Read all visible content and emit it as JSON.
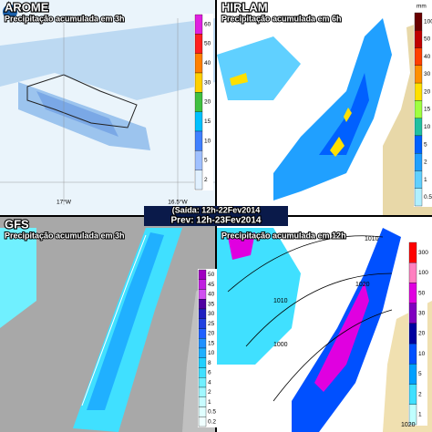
{
  "banner": {
    "line1": "(Saída: 12h-22Fev2014",
    "line2": "Prev: 12h-23Fev2014"
  },
  "panels": [
    {
      "title": "AROME",
      "subtitle": "Precipitação acumulada em 3h",
      "axis_labels": [
        "17°W",
        "16.5°W"
      ],
      "colorbar": {
        "labels": [
          60,
          50,
          40,
          30,
          20,
          15,
          10,
          5,
          2
        ],
        "colors": [
          "#e020e0",
          "#ff2020",
          "#ff8000",
          "#ffd000",
          "#40c040",
          "#00c0ff",
          "#4080ff",
          "#a0c0ff",
          "#e0f0ff"
        ]
      }
    },
    {
      "title": "HIRLAM",
      "subtitle": "Precipitação acumulada em 6h",
      "unit": "mm",
      "colorbar": {
        "labels": [
          100,
          50,
          40,
          30,
          20,
          15,
          10,
          5,
          2,
          1,
          0.5
        ],
        "colors": [
          "#6a0000",
          "#c00000",
          "#ff4000",
          "#ff9000",
          "#ffe000",
          "#a0ff40",
          "#20c0a0",
          "#0060ff",
          "#20a0ff",
          "#60d0ff",
          "#b0f0ff"
        ]
      }
    },
    {
      "title": "GFS",
      "subtitle": "Precipitação acumulada em 3h",
      "colorbar": {
        "labels": [
          50,
          45,
          40,
          35,
          30,
          25,
          20,
          15,
          10,
          8,
          6,
          4,
          2,
          1,
          0.5,
          0.2
        ],
        "colors": [
          "#a000c0",
          "#c020e0",
          "#d050f0",
          "#5000a0",
          "#2020c0",
          "#2040e0",
          "#2060ff",
          "#2090ff",
          "#20b0ff",
          "#20d0ff",
          "#40e0ff",
          "#70f0ff",
          "#a0f8ff",
          "#c8fcff",
          "#e0ffff",
          "#f0ffff"
        ]
      }
    },
    {
      "subtitle": "Precipitação acumulada em 12h",
      "isobars": [
        "1010",
        "1020",
        "1010",
        "1000",
        "1020"
      ],
      "colorbar": {
        "labels": [
          300,
          100,
          50,
          30,
          20,
          10,
          5,
          2,
          1
        ],
        "colors": [
          "#ff0000",
          "#ff80c0",
          "#e000e0",
          "#8000c0",
          "#0000a0",
          "#0050ff",
          "#00a0ff",
          "#40e0ff",
          "#c0ffff"
        ]
      }
    }
  ]
}
